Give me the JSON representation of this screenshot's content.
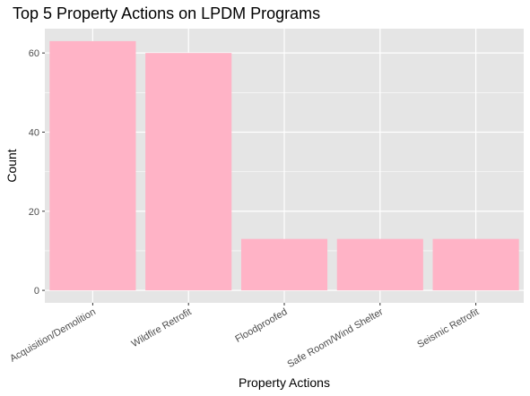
{
  "chart_data": {
    "type": "bar",
    "title": "Top 5 Property Actions on LPDM Programs",
    "xlabel": "Property Actions",
    "ylabel": "Count",
    "categories": [
      "Acquisition/Demolition",
      "Wildfire Retrofit",
      "Floodproofed",
      "Safe Room/Wind Shelter",
      "Seismic Retrofit"
    ],
    "values": [
      63,
      60,
      13,
      13,
      13
    ],
    "ylim": [
      -3.15,
      66.15
    ],
    "yticks": [
      0,
      20,
      40,
      60
    ],
    "grid": true,
    "legend": "none",
    "x_label_angle": -30,
    "colors": {
      "bar": "#ffb3c6",
      "panel": "#e5e5e5",
      "grid": "#ffffff",
      "tick_text": "#4d4d4d"
    }
  }
}
